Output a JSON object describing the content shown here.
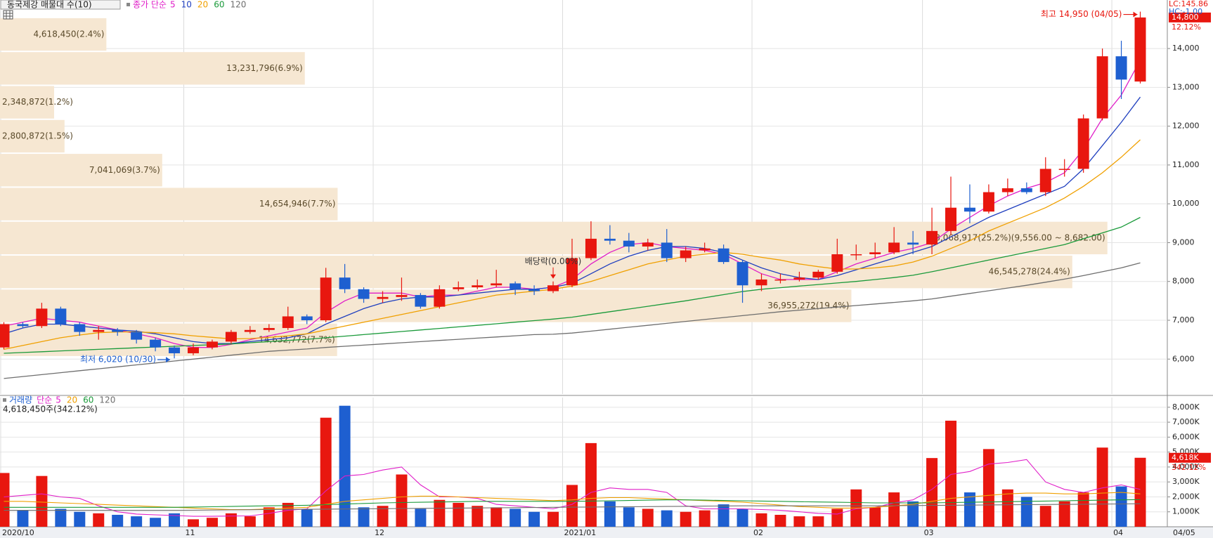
{
  "chart_data": [
    {
      "type": "candlestick",
      "title": "동국제강 매물대 수(10)",
      "ma_label": "종가 단순",
      "categories": [
        "2020/10",
        null,
        null,
        null,
        null,
        null,
        null,
        null,
        null,
        null,
        "11",
        null,
        null,
        null,
        null,
        null,
        null,
        null,
        null,
        null,
        "12",
        null,
        null,
        null,
        null,
        null,
        null,
        null,
        null,
        null,
        "2021/01",
        null,
        null,
        null,
        null,
        null,
        null,
        null,
        null,
        null,
        "02",
        null,
        null,
        null,
        null,
        null,
        null,
        null,
        null,
        "03",
        null,
        null,
        null,
        null,
        null,
        null,
        null,
        null,
        null,
        "04",
        null
      ],
      "open": [
        6300,
        6900,
        6850,
        7300,
        6900,
        6700,
        6750,
        6700,
        6500,
        6300,
        6150,
        6300,
        6450,
        6700,
        6750,
        6800,
        7100,
        7000,
        8100,
        7800,
        7550,
        7600,
        7650,
        7350,
        7800,
        7850,
        7900,
        7950,
        7800,
        7750,
        7900,
        8600,
        9100,
        9050,
        8900,
        9000,
        8600,
        8800,
        8850,
        8500,
        7900,
        8050,
        8050,
        8100,
        8250,
        8700,
        8700,
        8750,
        9000,
        8950,
        9300,
        9900,
        9800,
        10300,
        10400,
        10300,
        10900,
        10900,
        12200,
        13800,
        13150
      ],
      "high": [
        6950,
        6950,
        7450,
        7350,
        6950,
        6850,
        6800,
        6750,
        6550,
        6350,
        6400,
        6500,
        6750,
        6850,
        6900,
        7350,
        7150,
        8350,
        8450,
        7850,
        7750,
        8100,
        7700,
        7900,
        8000,
        8050,
        8300,
        8000,
        7900,
        8000,
        9100,
        9550,
        9450,
        9250,
        9100,
        9350,
        8900,
        9000,
        8950,
        8550,
        8200,
        8200,
        8250,
        8300,
        9100,
        8950,
        9000,
        9400,
        9300,
        9900,
        10700,
        10500,
        10500,
        10650,
        10550,
        11200,
        11150,
        12300,
        14000,
        14200,
        14950
      ],
      "low": [
        6250,
        6800,
        6800,
        6850,
        6600,
        6500,
        6600,
        6400,
        6200,
        6020,
        6100,
        6250,
        6400,
        6650,
        6700,
        6750,
        6900,
        6950,
        7700,
        7450,
        7450,
        7500,
        7300,
        7300,
        7750,
        7800,
        7850,
        7650,
        7650,
        7700,
        7850,
        8550,
        8950,
        8750,
        8800,
        8500,
        8500,
        8750,
        8450,
        7450,
        7750,
        7950,
        8000,
        8050,
        8200,
        8550,
        8600,
        8700,
        8700,
        8700,
        9200,
        9500,
        9750,
        10200,
        10250,
        10200,
        10700,
        10800,
        12150,
        12700,
        13100
      ],
      "close": [
        6900,
        6850,
        7300,
        6900,
        6700,
        6750,
        6700,
        6500,
        6300,
        6150,
        6300,
        6450,
        6700,
        6750,
        6800,
        7100,
        7000,
        8100,
        7800,
        7550,
        7600,
        7650,
        7350,
        7800,
        7850,
        7900,
        7950,
        7800,
        7750,
        7900,
        8600,
        9100,
        9050,
        8900,
        9000,
        8600,
        8800,
        8850,
        8500,
        7900,
        8050,
        8050,
        8100,
        8250,
        8700,
        8700,
        8750,
        9000,
        8950,
        9300,
        9900,
        9800,
        10300,
        10400,
        10300,
        10900,
        10900,
        12200,
        13800,
        13200,
        14800
      ],
      "close_label": "14,800",
      "change": "12.12%",
      "up_color": "#e8170f",
      "down_color": "#1e5fd0",
      "series": [
        {
          "name": "5",
          "color": "#e01ec8",
          "values": [
            6850,
            6950,
            7050,
            7000,
            6950,
            6850,
            6750,
            6650,
            6550,
            6400,
            6300,
            6300,
            6380,
            6500,
            6600,
            6700,
            6800,
            7200,
            7500,
            7700,
            7700,
            7700,
            7600,
            7650,
            7650,
            7750,
            7850,
            7850,
            7800,
            7850,
            8050,
            8450,
            8750,
            8950,
            9000,
            8900,
            8850,
            8800,
            8700,
            8450,
            8200,
            8050,
            8050,
            8050,
            8250,
            8450,
            8600,
            8750,
            8850,
            9000,
            9350,
            9650,
            9950,
            10200,
            10400,
            10550,
            10800,
            11400,
            12200,
            12800,
            13700
          ]
        },
        {
          "name": "10",
          "color": "#1f3fbf",
          "values": [
            6650,
            6800,
            6900,
            6900,
            6850,
            6800,
            6750,
            6720,
            6650,
            6550,
            6450,
            6400,
            6400,
            6450,
            6500,
            6550,
            6650,
            6900,
            7100,
            7300,
            7450,
            7550,
            7600,
            7600,
            7650,
            7700,
            7750,
            7800,
            7800,
            7850,
            7950,
            8200,
            8450,
            8650,
            8800,
            8900,
            8900,
            8850,
            8750,
            8550,
            8350,
            8200,
            8100,
            8050,
            8150,
            8300,
            8450,
            8600,
            8750,
            8900,
            9150,
            9400,
            9650,
            9850,
            10050,
            10250,
            10450,
            10900,
            11500,
            12100,
            12750
          ]
        },
        {
          "name": "20",
          "color": "#f0a000",
          "values": [
            6250,
            6350,
            6450,
            6550,
            6620,
            6680,
            6700,
            6700,
            6680,
            6650,
            6600,
            6560,
            6520,
            6530,
            6560,
            6600,
            6650,
            6750,
            6850,
            6950,
            7050,
            7150,
            7250,
            7350,
            7450,
            7550,
            7650,
            7700,
            7750,
            7800,
            7880,
            8000,
            8150,
            8300,
            8450,
            8550,
            8650,
            8700,
            8750,
            8700,
            8620,
            8550,
            8450,
            8380,
            8320,
            8320,
            8350,
            8400,
            8500,
            8650,
            8850,
            9050,
            9300,
            9500,
            9700,
            9900,
            10150,
            10450,
            10800,
            11200,
            11650
          ]
        },
        {
          "name": "60",
          "color": "#1a9a3a",
          "values": [
            6150,
            6170,
            6190,
            6210,
            6230,
            6250,
            6270,
            6290,
            6310,
            6330,
            6350,
            6370,
            6390,
            6420,
            6450,
            6480,
            6510,
            6550,
            6590,
            6630,
            6670,
            6710,
            6750,
            6790,
            6830,
            6870,
            6910,
            6950,
            6990,
            7030,
            7080,
            7150,
            7220,
            7290,
            7360,
            7430,
            7500,
            7580,
            7660,
            7740,
            7800,
            7840,
            7880,
            7920,
            7960,
            8000,
            8050,
            8100,
            8160,
            8250,
            8350,
            8450,
            8550,
            8650,
            8750,
            8850,
            8950,
            9100,
            9250,
            9400,
            9650
          ]
        },
        {
          "name": "120",
          "color": "#6e6e6e",
          "values": [
            5500,
            5550,
            5600,
            5650,
            5700,
            5750,
            5800,
            5850,
            5900,
            5950,
            6000,
            6050,
            6100,
            6150,
            6200,
            6230,
            6260,
            6300,
            6330,
            6360,
            6390,
            6420,
            6450,
            6480,
            6510,
            6540,
            6570,
            6600,
            6630,
            6640,
            6670,
            6720,
            6770,
            6820,
            6870,
            6920,
            6970,
            7020,
            7070,
            7120,
            7170,
            7220,
            7260,
            7300,
            7340,
            7380,
            7420,
            7460,
            7500,
            7550,
            7620,
            7690,
            7760,
            7830,
            7900,
            7980,
            8060,
            8150,
            8250,
            8350,
            8480
          ]
        }
      ],
      "profile": {
        "color": "#f6e7d2",
        "xlim": [
          0,
          50670000
        ],
        "bins": [
          6060,
          6934,
          7808,
          8682,
          9556,
          10430,
          11304,
          12178,
          13052,
          13926,
          14800
        ],
        "values": [
          14632772,
          36955272,
          46545278,
          48068917,
          14654946,
          7041069,
          2800872,
          2348872,
          13231796,
          4618450
        ],
        "value_labels": [
          "14,632,772(7.7%)",
          "36,955,272(19.4%)",
          "46,545,278(24.4%)",
          "48,068,917(25.2%)(9,556.00 ~ 8,682.00)",
          "14,654,946(7.7%)",
          "7,041,069(3.7%)",
          "2,800,872(1.5%)",
          "2,348,872(1.2%)",
          "13,231,796(6.9%)",
          "4,618,450(2.4%)"
        ]
      },
      "annotations": {
        "high": "최고 14,950 (04/05)",
        "low": "최저 6,020 (10/30)",
        "dividend": "배당락(0.00%)"
      },
      "lc": "LC:145.86",
      "hc": "HC:-1.00",
      "last_date": "04/05",
      "ylim": [
        5100,
        15250
      ],
      "yticks": [
        {
          "value": 6000,
          "label": "6,000"
        },
        {
          "value": 7000,
          "label": "7,000"
        },
        {
          "value": 8000,
          "label": "8,000"
        },
        {
          "value": 9000,
          "label": "9,000"
        },
        {
          "value": 10000,
          "label": "10,000"
        },
        {
          "value": 11000,
          "label": "11,000"
        },
        {
          "value": 12000,
          "label": "12,000"
        },
        {
          "value": 13000,
          "label": "13,000"
        },
        {
          "value": 14000,
          "label": "14,000"
        }
      ],
      "grid": true
    },
    {
      "type": "bar",
      "title": "거래량",
      "title_color": "#1e5fd0",
      "ma_label": "단순",
      "subtitle": "4,618,450주(342.12%)",
      "values": [
        3600,
        1100,
        3400,
        1200,
        1000,
        900,
        800,
        700,
        600,
        900,
        500,
        600,
        900,
        700,
        1300,
        1600,
        1200,
        7300,
        8100,
        1300,
        1400,
        3500,
        1200,
        1800,
        1600,
        1400,
        1300,
        1200,
        1000,
        1000,
        2800,
        5600,
        1700,
        1300,
        1200,
        1100,
        1000,
        1100,
        1500,
        1200,
        900,
        800,
        700,
        700,
        1200,
        2500,
        1300,
        2300,
        1700,
        4600,
        7100,
        2300,
        5200,
        2500,
        2000,
        1400,
        1700,
        2300,
        5300,
        2700,
        4618
      ],
      "last_label": "4,618K",
      "change": "342.12%",
      "series": [
        {
          "name": "5",
          "color": "#e01ec8",
          "values": [
            2000,
            2100,
            2200,
            2000,
            1900,
            1400,
            1000,
            850,
            800,
            750,
            700,
            700,
            720,
            730,
            900,
            1100,
            1200,
            2400,
            3400,
            3500,
            3800,
            4000,
            2800,
            2000,
            2000,
            1900,
            1500,
            1400,
            1300,
            1200,
            1500,
            2300,
            2600,
            2500,
            2500,
            2300,
            1400,
            1200,
            1200,
            1200,
            1150,
            1100,
            1000,
            900,
            850,
            1200,
            1300,
            1600,
            1800,
            2500,
            3500,
            3700,
            4200,
            4300,
            4500,
            3000,
            2500,
            2300,
            2600,
            2800,
            2500
          ]
        },
        {
          "name": "20",
          "color": "#f0a000",
          "values": [
            1700,
            1700,
            1650,
            1600,
            1550,
            1500,
            1450,
            1400,
            1350,
            1300,
            1250,
            1200,
            1150,
            1150,
            1200,
            1250,
            1300,
            1500,
            1700,
            1800,
            1900,
            2000,
            2050,
            2050,
            2000,
            1950,
            1900,
            1850,
            1800,
            1750,
            1800,
            1900,
            1950,
            1950,
            1900,
            1850,
            1800,
            1750,
            1700,
            1650,
            1550,
            1450,
            1350,
            1300,
            1250,
            1250,
            1300,
            1400,
            1500,
            1700,
            1900,
            2000,
            2100,
            2200,
            2250,
            2250,
            2200,
            2200,
            2250,
            2300,
            2200
          ]
        },
        {
          "name": "60",
          "color": "#1a9a3a",
          "values": [
            1300,
            1300,
            1300,
            1300,
            1300,
            1300,
            1300,
            1300,
            1300,
            1300,
            1320,
            1340,
            1360,
            1380,
            1400,
            1420,
            1440,
            1480,
            1520,
            1560,
            1600,
            1620,
            1640,
            1660,
            1680,
            1700,
            1700,
            1700,
            1700,
            1700,
            1700,
            1720,
            1740,
            1760,
            1780,
            1800,
            1800,
            1780,
            1760,
            1740,
            1720,
            1700,
            1680,
            1660,
            1640,
            1620,
            1600,
            1600,
            1600,
            1600,
            1620,
            1640,
            1660,
            1680,
            1700,
            1720,
            1740,
            1760,
            1780,
            1800,
            1820
          ]
        },
        {
          "name": "120",
          "color": "#6e6e6e",
          "values": [
            1100,
            1100,
            1100,
            1100,
            1100,
            1100,
            1100,
            1100,
            1100,
            1100,
            1110,
            1120,
            1130,
            1140,
            1150,
            1160,
            1170,
            1180,
            1190,
            1200,
            1210,
            1220,
            1230,
            1240,
            1250,
            1260,
            1270,
            1280,
            1290,
            1300,
            1310,
            1320,
            1330,
            1340,
            1350,
            1360,
            1370,
            1380,
            1390,
            1400,
            1400,
            1400,
            1400,
            1400,
            1400,
            1400,
            1400,
            1410,
            1420,
            1430,
            1440,
            1450,
            1460,
            1470,
            1480,
            1490,
            1500,
            1510,
            1520,
            1530,
            1540
          ]
        }
      ],
      "ylim": [
        0,
        8650
      ],
      "yticks": [
        {
          "value": 1000,
          "label": "1,000K"
        },
        {
          "value": 2000,
          "label": "2,000K"
        },
        {
          "value": 3000,
          "label": "3,000K"
        },
        {
          "value": 4000,
          "label": "4,000K"
        },
        {
          "value": 5000,
          "label": "5,000K"
        },
        {
          "value": 6000,
          "label": "6,000K"
        },
        {
          "value": 7000,
          "label": "7,000K"
        },
        {
          "value": 8000,
          "label": "8,000K"
        }
      ],
      "grid": true
    }
  ]
}
